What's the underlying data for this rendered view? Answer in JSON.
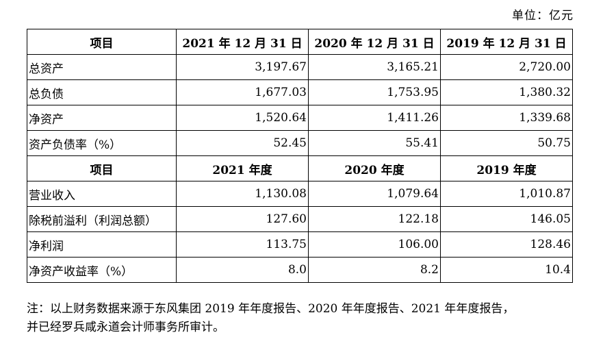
{
  "unit_label": "单位：亿元",
  "balance_header": [
    "项目",
    "2021 年 12 月 31 日",
    "2020 年 12 月 31 日",
    "2019 年 12 月 31 日"
  ],
  "balance_rows": [
    {
      "label": "总资产",
      "values": [
        "3,197.67",
        "3,165.21",
        "2,720.00"
      ]
    },
    {
      "label": "总负债",
      "values": [
        "1,677.03",
        "1,753.95",
        "1,380.32"
      ]
    },
    {
      "label": "净资产",
      "values": [
        "1,520.64",
        "1,411.26",
        "1,339.68"
      ]
    },
    {
      "label": "资产负债率（%）",
      "values": [
        "52.45",
        "55.41",
        "50.75"
      ]
    }
  ],
  "income_header": [
    "项目",
    "2021 年度",
    "2020 年度",
    "2019 年度"
  ],
  "income_rows": [
    {
      "label": "营业收入",
      "values": [
        "1,130.08",
        "1,079.64",
        "1,010.87"
      ]
    },
    {
      "label": "除税前溢利（利润总额）",
      "values": [
        "127.60",
        "122.18",
        "146.05"
      ]
    },
    {
      "label": "净利润",
      "values": [
        "113.75",
        "106.00",
        "128.46"
      ]
    },
    {
      "label": "净资产收益率（%）",
      "values": [
        "8.0",
        "8.2",
        "10.4"
      ]
    }
  ],
  "note_line1": "注：以上财务数据来源于东风集团 2019 年年度报告、2020 年年度报告、2021 年年度报告，",
  "note_line2": "并已经罗兵咸永道会计师事务所审计。"
}
